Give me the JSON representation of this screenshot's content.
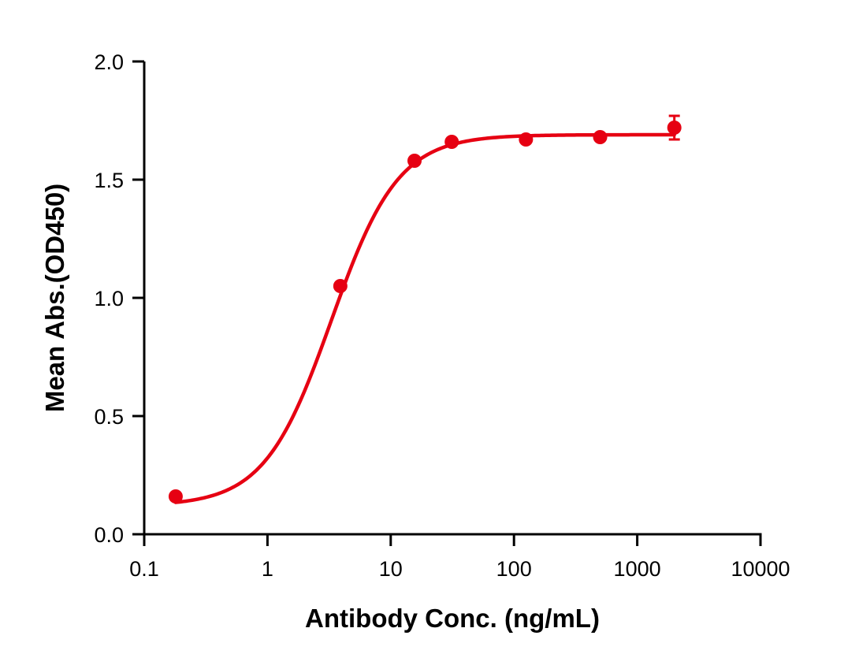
{
  "chart_data": {
    "type": "scatter",
    "title": "",
    "xlabel": "Antibody Conc. (ng/mL)",
    "ylabel": "Mean Abs.(OD450)",
    "xscale": "log",
    "xlim": [
      0.1,
      10000
    ],
    "ylim": [
      0,
      2.0
    ],
    "x_ticks": [
      "0.1",
      "1",
      "10",
      "100",
      "1000",
      "10000"
    ],
    "x_tick_values": [
      0.1,
      1,
      10,
      100,
      1000,
      10000
    ],
    "y_ticks": [
      "0.0",
      "0.5",
      "1.0",
      "1.5",
      "2.0"
    ],
    "y_tick_values": [
      0,
      0.5,
      1.0,
      1.5,
      2.0
    ],
    "grid": false,
    "legend": null,
    "color": "#E60012",
    "series": [
      {
        "name": "Mean Abs.",
        "x": [
          0.18,
          3.9,
          15.6,
          31.25,
          125,
          500,
          2000
        ],
        "y": [
          0.16,
          1.05,
          1.58,
          1.66,
          1.67,
          1.68,
          1.72
        ],
        "error": [
          0,
          0,
          0,
          0,
          0,
          0,
          0.05
        ]
      }
    ],
    "fit": {
      "model": "4PL",
      "bottom": 0.12,
      "top": 1.69,
      "ec50": 3.3,
      "hill": 1.6,
      "x_range": [
        0.18,
        2000
      ]
    }
  }
}
